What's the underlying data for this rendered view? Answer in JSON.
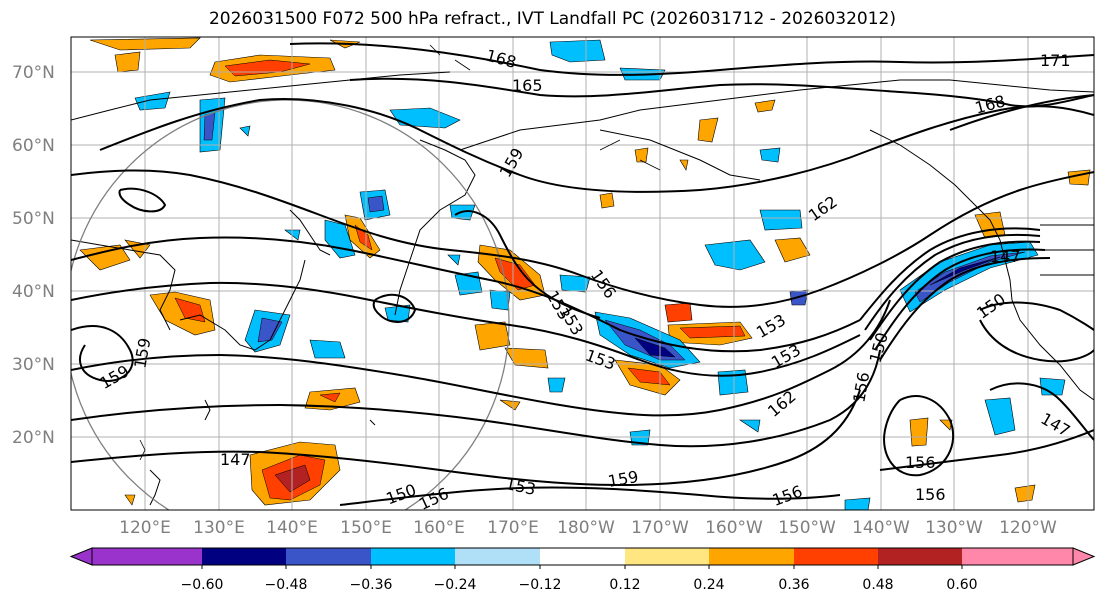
{
  "title": "2026031500 F072 500 hPa refract., IVT Landfall PC (2026031712 - 2026032012)",
  "lat_labels": [
    "70°N",
    "60°N",
    "50°N",
    "40°N",
    "30°N",
    "20°N"
  ],
  "lon_labels": [
    "120°E",
    "130°E",
    "140°E",
    "150°E",
    "160°E",
    "170°E",
    "180°W",
    "170°W",
    "160°W",
    "150°W",
    "140°W",
    "130°W",
    "120°W"
  ],
  "contour_labels": [
    "168",
    "165",
    "171",
    "168",
    "159",
    "162",
    "156",
    "153",
    "153",
    "153",
    "153",
    "159",
    "159",
    "150",
    "150",
    "147",
    "147",
    "147",
    "150",
    "156",
    "153",
    "159",
    "162",
    "156",
    "156",
    "156",
    "156",
    "153"
  ],
  "colorbar": {
    "tick_labels": [
      "−0.60",
      "−0.48",
      "−0.36",
      "−0.24",
      "−0.12",
      "0.12",
      "0.24",
      "0.36",
      "0.48",
      "0.60"
    ],
    "colors": [
      "#9933cc",
      "#000080",
      "#3a55c8",
      "#00bfff",
      "#b0e0f8",
      "#ffffff",
      "#ffe680",
      "#ffa500",
      "#ff4000",
      "#b22222",
      "#ff88aa"
    ]
  },
  "colors": {
    "positive_light": "#ffe680",
    "positive_mid": "#ffa500",
    "positive_strong": "#ff4000",
    "positive_max": "#b22222",
    "negative_light": "#b0e0f8",
    "negative_mid": "#00bfff",
    "negative_strong": "#3a55c8",
    "negative_max": "#000080"
  }
}
